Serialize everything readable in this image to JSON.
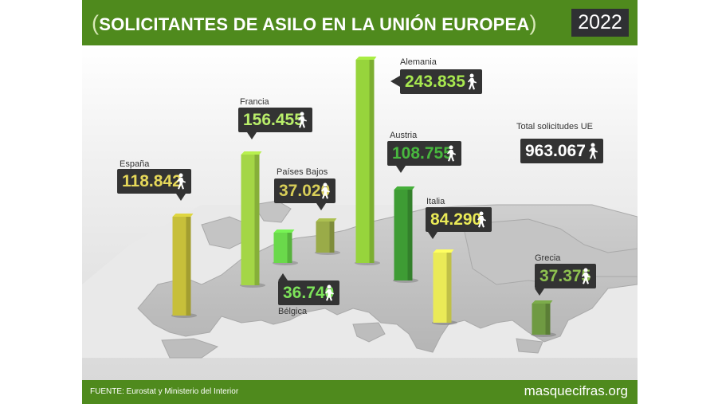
{
  "header": {
    "title": "SOLICITANTES DE ASILO EN LA UNIÓN EUROPEA",
    "year": "2022"
  },
  "footer": {
    "source": "FUENTE: Eurostat y Ministerio del Interior",
    "site": "masquecifras.org"
  },
  "total": {
    "label": "Total solicitudes UE",
    "value": "963.067"
  },
  "icons": {
    "person": "walking-person-icon"
  },
  "colors": {
    "brand_green": "#4f8a1d",
    "dark_box": "#333333",
    "map_gray": "#c4c4c4"
  },
  "chart_data": {
    "type": "bar",
    "categories": [
      "España",
      "Francia",
      "Bélgica",
      "Países Bajos",
      "Alemania",
      "Austria",
      "Italia",
      "Grecia"
    ],
    "values": [
      118842,
      156455,
      36740,
      37020,
      243835,
      108755,
      84290,
      37375
    ],
    "value_labels": [
      "118.842",
      "156.455",
      "36.740",
      "37.020",
      "243.835",
      "108.755",
      "84.290",
      "37.375"
    ],
    "bar_colors": [
      "#c7bf3a",
      "#a4d646",
      "#6ad94b",
      "#9aab48",
      "#97d43c",
      "#3e9c34",
      "#eaea57",
      "#6f9a42"
    ],
    "label_colors": [
      "#e6d85a",
      "#b9ee6a",
      "#7de35a",
      "#d8ce58",
      "#a8e84f",
      "#48b83e",
      "#eaea57",
      "#8ec150"
    ],
    "title": "SOLICITANTES DE ASILO EN LA UNIÓN EUROPEA",
    "xlabel": "",
    "ylabel": "",
    "ylim": [
      0,
      243835
    ],
    "legend": "none",
    "grid": false
  }
}
